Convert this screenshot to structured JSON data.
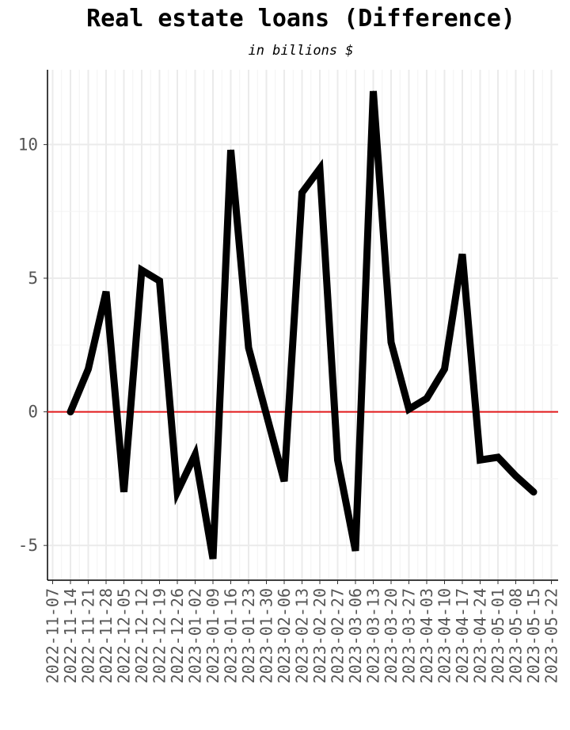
{
  "chart_data": {
    "type": "line",
    "title": "Real estate loans (Difference)",
    "subtitle": "in billions $",
    "xlabel": "",
    "ylabel": "",
    "x": [
      "2022-11-07",
      "2022-11-14",
      "2022-11-21",
      "2022-11-28",
      "2022-12-05",
      "2022-12-12",
      "2022-12-19",
      "2022-12-26",
      "2023-01-02",
      "2023-01-09",
      "2023-01-16",
      "2023-01-23",
      "2023-01-30",
      "2023-02-06",
      "2023-02-13",
      "2023-02-20",
      "2023-02-27",
      "2023-03-06",
      "2023-03-13",
      "2023-03-20",
      "2023-03-27",
      "2023-04-03",
      "2023-04-10",
      "2023-04-17",
      "2023-04-24",
      "2023-05-01",
      "2023-05-08",
      "2023-05-15",
      "2023-05-22"
    ],
    "series": [
      {
        "values": [
          null,
          0.0,
          1.6,
          4.5,
          -3.0,
          5.3,
          4.9,
          -3.0,
          -1.6,
          -5.5,
          9.8,
          2.4,
          -0.1,
          -2.6,
          8.2,
          9.1,
          -1.8,
          -5.2,
          12.0,
          2.6,
          0.1,
          0.5,
          1.6,
          5.9,
          -1.8,
          -1.7,
          -2.4,
          -3.0,
          null
        ]
      }
    ],
    "ylim": [
      -6.3,
      12.8
    ],
    "yticks": [
      -5,
      0,
      5,
      10
    ],
    "ytick_labels": [
      "-5",
      "0",
      "5",
      "10"
    ],
    "reference_line": {
      "y": 0,
      "color": "#e31a1c"
    },
    "line_color": "#000000",
    "grid": true,
    "legend": "none"
  }
}
